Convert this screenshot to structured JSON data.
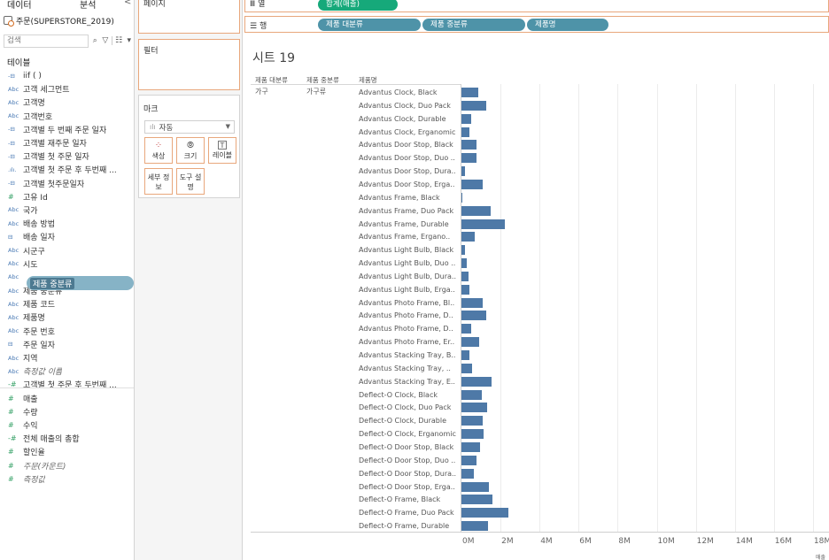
{
  "data_pane": {
    "tabs": [
      "데이터",
      "분석",
      "<"
    ],
    "datasource": "주문(SUPERSTORE_2019)",
    "search_placeholder": "검색",
    "section_title": "테이블",
    "fields": [
      {
        "type": "-⊟",
        "label": "iif ( )"
      },
      {
        "type": "Abc",
        "label": "고객 세그먼트"
      },
      {
        "type": "Abc",
        "label": "고객명"
      },
      {
        "type": "Abc",
        "label": "고객번호"
      },
      {
        "type": "-⊟",
        "label": "고객별 두 번째 주문 일자"
      },
      {
        "type": "-⊟",
        "label": "고객별 재주문 일자"
      },
      {
        "type": "-⊟",
        "label": "고객별 첫 주문 일자"
      },
      {
        "type": ".ılı.",
        "label": "고객별 첫 주문 후 두번째 ..."
      },
      {
        "type": "-⊟",
        "label": "고객별 첫주문일자"
      },
      {
        "type": "#",
        "label": "고유 Id"
      },
      {
        "type": "Abc",
        "label": "국가"
      },
      {
        "type": "Abc",
        "label": "배송 방법"
      },
      {
        "type": "⊟",
        "label": "배송 일자"
      },
      {
        "type": "Abc",
        "label": "시군구"
      },
      {
        "type": "Abc",
        "label": "시도"
      },
      {
        "type": "Abc",
        "label": "제품 중분류"
      },
      {
        "type": "Abc",
        "label": "제품 중분류"
      },
      {
        "type": "Abc",
        "label": "제품 코드"
      },
      {
        "type": "Abc",
        "label": "제품명"
      },
      {
        "type": "Abc",
        "label": "주문 번호"
      },
      {
        "type": "⊟",
        "label": "주문 일자"
      },
      {
        "type": "Abc",
        "label": "지역"
      },
      {
        "type": "Abc",
        "label": "측정값 이름"
      },
      {
        "type": "-#",
        "label": "고객별 첫 주문 후 두번째 ..."
      },
      {
        "type": "#",
        "label": "매출"
      },
      {
        "type": "#",
        "label": "수량"
      },
      {
        "type": "#",
        "label": "수익"
      },
      {
        "type": "-#",
        "label": "전체 매출의 총합"
      },
      {
        "type": "#",
        "label": "할인율"
      },
      {
        "type": "#",
        "label": "주문(카운트)"
      },
      {
        "type": "#",
        "label": "측정값"
      }
    ],
    "drag_pill_label": "제품 중분류"
  },
  "cards": {
    "pages_title": "페이지",
    "filters_title": "필터",
    "marks_title": "마크",
    "mark_type": "자동",
    "buttons": [
      {
        "icon": "⁘",
        "label": "색상"
      },
      {
        "icon": "⦾",
        "label": "크기"
      },
      {
        "icon": "T",
        "label": "레이블"
      },
      {
        "icon": "",
        "label": "세부 정보"
      },
      {
        "icon": "",
        "label": "도구 설명"
      }
    ]
  },
  "shelves": {
    "columns_label": "열",
    "columns_pill": "합계(매출)",
    "rows_label": "행",
    "rows_pills": [
      "제품 대분류",
      "제품 중분류",
      "제품명"
    ]
  },
  "view": {
    "sheet_title": "시트 19",
    "headers": [
      "제품 대분류",
      "제품 중분류",
      "제품명"
    ],
    "category_value": "가구",
    "subcategory_value": "가구류",
    "axis_title": "매출"
  },
  "chart_data": {
    "type": "bar",
    "orientation": "horizontal",
    "xlabel": "매출",
    "xlim": [
      0,
      19000000
    ],
    "x_ticks": [
      "0M",
      "2M",
      "4M",
      "6M",
      "8M",
      "10M",
      "12M",
      "14M",
      "16M",
      "18M"
    ],
    "bar_color": "#4e79a7",
    "categories": [
      "Advantus Clock, Black",
      "Advantus Clock, Duo Pack",
      "Advantus Clock, Durable",
      "Advantus Clock, Erganomic",
      "Advantus Door Stop, Black",
      "Advantus Door Stop, Duo ..",
      "Advantus Door Stop, Dura..",
      "Advantus Door Stop, Erga..",
      "Advantus Frame, Black",
      "Advantus Frame, Duo Pack",
      "Advantus Frame, Durable",
      "Advantus Frame, Ergano..",
      "Advantus Light Bulb, Black",
      "Advantus Light Bulb, Duo ..",
      "Advantus Light Bulb, Dura..",
      "Advantus Light Bulb, Erga..",
      "Advantus Photo Frame, Bl..",
      "Advantus Photo Frame, D..",
      "Advantus Photo Frame, D..",
      "Advantus Photo Frame, Er..",
      "Advantus Stacking Tray, B..",
      "Advantus Stacking Tray, ..",
      "Advantus Stacking Tray, E..",
      "Deflect-O Clock, Black",
      "Deflect-O Clock, Duo Pack",
      "Deflect-O Clock, Durable",
      "Deflect-O Clock, Erganomic",
      "Deflect-O Door Stop, Black",
      "Deflect-O Door Stop, Duo ..",
      "Deflect-O Door Stop, Dura..",
      "Deflect-O Door Stop, Erga..",
      "Deflect-O Frame, Black",
      "Deflect-O Frame, Duo Pack",
      "Deflect-O Frame, Durable"
    ],
    "values": [
      850000,
      1250000,
      500000,
      400000,
      750000,
      750000,
      200000,
      1100000,
      50000,
      1500000,
      2200000,
      700000,
      200000,
      250000,
      350000,
      400000,
      1100000,
      1250000,
      500000,
      900000,
      400000,
      550000,
      1550000,
      1050000,
      1300000,
      1100000,
      1150000,
      950000,
      750000,
      650000,
      1400000,
      1600000,
      2400000,
      1350000
    ]
  }
}
